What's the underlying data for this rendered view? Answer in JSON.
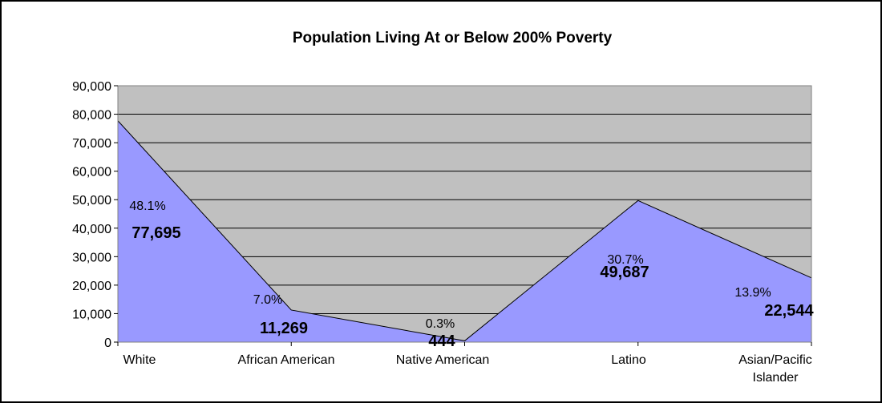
{
  "chart_data": {
    "type": "area",
    "title": "Population Living At or Below 200% Poverty",
    "xlabel": "",
    "ylabel": "",
    "categories": [
      "White",
      "African American",
      "Native American",
      "Latino",
      "Asian/Pacific Islander"
    ],
    "category_lines": [
      [
        "White"
      ],
      [
        "African American"
      ],
      [
        "Native American"
      ],
      [
        "Latino"
      ],
      [
        "Asian/Pacific",
        "Islander"
      ]
    ],
    "values": [
      77695,
      11269,
      444,
      49687,
      22544
    ],
    "value_labels": [
      "77,695",
      "11,269",
      "444",
      "49,687",
      "22,544"
    ],
    "percent_labels": [
      "48.1%",
      "7.0%",
      "0.3%",
      "30.7%",
      "13.9%"
    ],
    "ylim": [
      0,
      90000
    ],
    "yticks": [
      0,
      10000,
      20000,
      30000,
      40000,
      50000,
      60000,
      70000,
      80000,
      90000
    ],
    "ytick_labels": [
      "0",
      "10,000",
      "20,000",
      "30,000",
      "40,000",
      "50,000",
      "60,000",
      "70,000",
      "80,000",
      "90,000"
    ],
    "grid": true,
    "legend": "none",
    "colors": {
      "plot_background": "#C0C0C0",
      "area_fill": "#9999FF",
      "area_stroke": "#000000",
      "grid": "#000000"
    }
  }
}
